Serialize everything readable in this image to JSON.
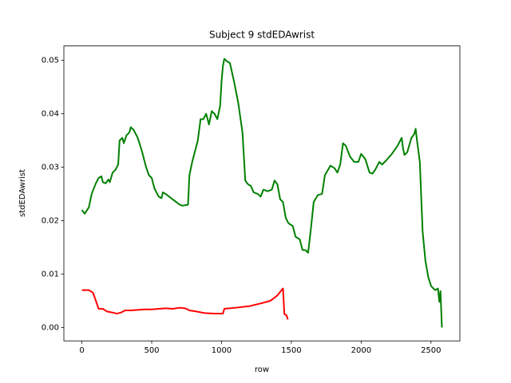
{
  "chart_data": {
    "type": "line",
    "title": "Subject 9 stdEDAwrist",
    "x_label": "row",
    "y_label": "stdEDAwrist",
    "xlim": [
      -129,
      2707
    ],
    "ylim": [
      -0.0025,
      0.0527
    ],
    "xticks": [
      0,
      500,
      1000,
      1500,
      2000,
      2500
    ],
    "yticks": [
      {
        "value": 0,
        "label": "0.00"
      },
      {
        "value": 0.01,
        "label": "0.01"
      },
      {
        "value": 0.02,
        "label": "0.02"
      },
      {
        "value": 0.03,
        "label": "0.03"
      },
      {
        "value": 0.04,
        "label": "0.04"
      },
      {
        "value": 0.05,
        "label": "0.05"
      }
    ],
    "series": [
      {
        "color": "#008000",
        "x": [
          0,
          20,
          50,
          70,
          100,
          120,
          140,
          150,
          170,
          190,
          200,
          220,
          240,
          250,
          260,
          270,
          290,
          300,
          320,
          340,
          350,
          370,
          400,
          430,
          460,
          480,
          500,
          520,
          550,
          570,
          580,
          600,
          650,
          700,
          720,
          760,
          770,
          790,
          810,
          830,
          850,
          870,
          890,
          910,
          930,
          950,
          970,
          990,
          1000,
          1010,
          1020,
          1040,
          1060,
          1090,
          1120,
          1150,
          1170,
          1190,
          1210,
          1230,
          1260,
          1280,
          1300,
          1330,
          1360,
          1380,
          1400,
          1420,
          1440,
          1460,
          1480,
          1510,
          1530,
          1560,
          1580,
          1600,
          1620,
          1640,
          1660,
          1690,
          1720,
          1740,
          1780,
          1810,
          1830,
          1850,
          1870,
          1890,
          1920,
          1950,
          1980,
          2000,
          2030,
          2060,
          2080,
          2100,
          2130,
          2150,
          2180,
          2220,
          2260,
          2290,
          2300,
          2310,
          2330,
          2360,
          2380,
          2390,
          2400,
          2420,
          2440,
          2460,
          2480,
          2500,
          2510,
          2530,
          2550,
          2560,
          2568,
          2578
        ],
        "values": [
          0.022,
          0.0213,
          0.0225,
          0.025,
          0.027,
          0.028,
          0.0283,
          0.0272,
          0.027,
          0.0277,
          0.0272,
          0.029,
          0.0295,
          0.03,
          0.0305,
          0.035,
          0.0355,
          0.0345,
          0.036,
          0.0365,
          0.0375,
          0.037,
          0.0355,
          0.033,
          0.03,
          0.0285,
          0.028,
          0.026,
          0.0245,
          0.0242,
          0.0253,
          0.025,
          0.024,
          0.023,
          0.0228,
          0.023,
          0.0285,
          0.031,
          0.033,
          0.035,
          0.039,
          0.039,
          0.04,
          0.038,
          0.0405,
          0.04,
          0.039,
          0.0415,
          0.046,
          0.049,
          0.0503,
          0.0498,
          0.0495,
          0.046,
          0.042,
          0.0365,
          0.0275,
          0.0268,
          0.0265,
          0.0253,
          0.025,
          0.0245,
          0.0258,
          0.0255,
          0.0258,
          0.0275,
          0.0268,
          0.024,
          0.0235,
          0.0205,
          0.0195,
          0.019,
          0.017,
          0.0165,
          0.0145,
          0.0145,
          0.014,
          0.0185,
          0.0235,
          0.0248,
          0.025,
          0.0285,
          0.0303,
          0.0298,
          0.029,
          0.0305,
          0.0345,
          0.034,
          0.032,
          0.031,
          0.031,
          0.0325,
          0.0315,
          0.029,
          0.0288,
          0.0295,
          0.031,
          0.0305,
          0.0313,
          0.0325,
          0.034,
          0.0355,
          0.0335,
          0.0323,
          0.0328,
          0.0355,
          0.0362,
          0.0372,
          0.035,
          0.031,
          0.018,
          0.0125,
          0.0095,
          0.0078,
          0.0075,
          0.007,
          0.0073,
          0.0048,
          0.0068,
          0.0
        ]
      },
      {
        "color": "#ff0000",
        "x": [
          0,
          50,
          80,
          100,
          120,
          150,
          180,
          220,
          250,
          280,
          310,
          350,
          400,
          450,
          500,
          550,
          600,
          650,
          700,
          740,
          770,
          820,
          880,
          950,
          1010,
          1020,
          1100,
          1200,
          1280,
          1350,
          1400,
          1430,
          1440,
          1450,
          1465,
          1475
        ],
        "values": [
          0.007,
          0.007,
          0.0065,
          0.005,
          0.0035,
          0.0035,
          0.003,
          0.0028,
          0.0026,
          0.0028,
          0.0032,
          0.0032,
          0.0033,
          0.0034,
          0.0034,
          0.0035,
          0.0036,
          0.0035,
          0.0037,
          0.0036,
          0.0032,
          0.003,
          0.0027,
          0.0026,
          0.0026,
          0.0035,
          0.0037,
          0.004,
          0.0045,
          0.005,
          0.006,
          0.007,
          0.0073,
          0.0025,
          0.0023,
          0.0015
        ]
      }
    ]
  }
}
